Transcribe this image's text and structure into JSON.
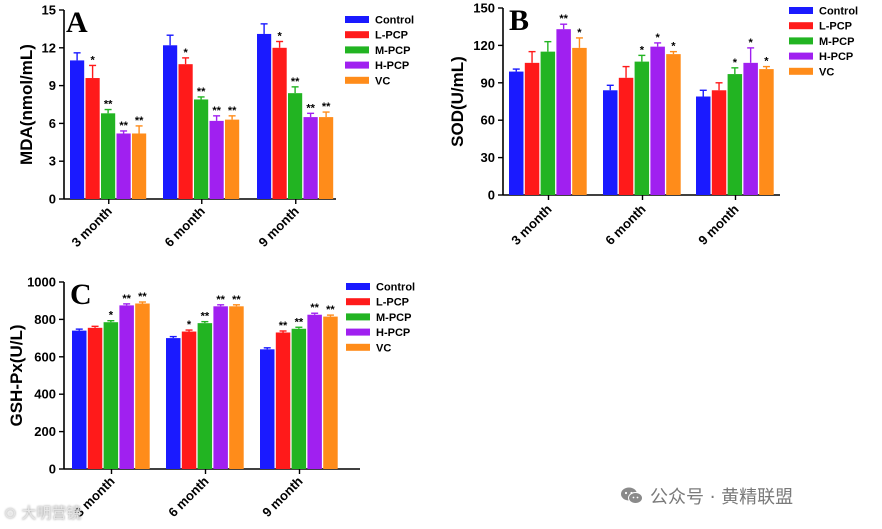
{
  "chart_data": [
    {
      "type": "bar",
      "panel": "A",
      "ylabel": "MDA(nmol/mL)",
      "ylim": [
        0,
        15
      ],
      "yticks": [
        0,
        3,
        6,
        9,
        12,
        15
      ],
      "categories": [
        "3 month",
        "6 month",
        "9 month"
      ],
      "legend": [
        "Control",
        "L-PCP",
        "M-PCP",
        "H-PCP",
        "VC"
      ],
      "colors": [
        "#1a1aff",
        "#ff1a1a",
        "#22b422",
        "#a020f0",
        "#ff8c1a"
      ],
      "series": [
        {
          "name": "Control",
          "values": [
            11.0,
            12.2,
            13.1
          ],
          "errors": [
            0.6,
            0.8,
            0.8
          ],
          "sig": [
            "",
            "",
            ""
          ]
        },
        {
          "name": "L-PCP",
          "values": [
            9.6,
            10.7,
            12.0
          ],
          "errors": [
            1.0,
            0.5,
            0.5
          ],
          "sig": [
            "*",
            "*",
            "*"
          ]
        },
        {
          "name": "M-PCP",
          "values": [
            6.8,
            7.9,
            8.4
          ],
          "errors": [
            0.3,
            0.2,
            0.5
          ],
          "sig": [
            "**",
            "**",
            "**"
          ]
        },
        {
          "name": "H-PCP",
          "values": [
            5.2,
            6.2,
            6.5
          ],
          "errors": [
            0.2,
            0.4,
            0.3
          ],
          "sig": [
            "**",
            "**",
            "**"
          ]
        },
        {
          "name": "VC",
          "values": [
            5.2,
            6.3,
            6.5
          ],
          "errors": [
            0.6,
            0.3,
            0.4
          ],
          "sig": [
            "**",
            "**",
            "**"
          ]
        }
      ]
    },
    {
      "type": "bar",
      "panel": "B",
      "ylabel": "SOD(U/mL)",
      "ylim": [
        0,
        150
      ],
      "yticks": [
        0,
        30,
        60,
        90,
        120,
        150
      ],
      "categories": [
        "3 month",
        "6 month",
        "9 month"
      ],
      "legend": [
        "Control",
        "L-PCP",
        "M-PCP",
        "H-PCP",
        "VC"
      ],
      "colors": [
        "#1a1aff",
        "#ff1a1a",
        "#22b422",
        "#a020f0",
        "#ff8c1a"
      ],
      "series": [
        {
          "name": "Control",
          "values": [
            99,
            84,
            79
          ],
          "errors": [
            2,
            4,
            5
          ],
          "sig": [
            "",
            "",
            ""
          ]
        },
        {
          "name": "L-PCP",
          "values": [
            106,
            94,
            84
          ],
          "errors": [
            9,
            9,
            6
          ],
          "sig": [
            "",
            "",
            ""
          ]
        },
        {
          "name": "M-PCP",
          "values": [
            115,
            107,
            97
          ],
          "errors": [
            8,
            5,
            5
          ],
          "sig": [
            "",
            "*",
            "*"
          ]
        },
        {
          "name": "H-PCP",
          "values": [
            133,
            119,
            106
          ],
          "errors": [
            4,
            3,
            12
          ],
          "sig": [
            "**",
            "*",
            "*"
          ]
        },
        {
          "name": "VC",
          "values": [
            118,
            113,
            101
          ],
          "errors": [
            8,
            2,
            2
          ],
          "sig": [
            "*",
            "*",
            "*"
          ]
        }
      ]
    },
    {
      "type": "bar",
      "panel": "C",
      "ylabel": "GSH-Px(U/L)",
      "ylim": [
        0,
        1000
      ],
      "yticks": [
        0,
        200,
        400,
        600,
        800,
        1000
      ],
      "categories": [
        "3 month",
        "6 month",
        "9 month"
      ],
      "legend": [
        "Control",
        "L-PCP",
        "M-PCP",
        "H-PCP",
        "VC"
      ],
      "colors": [
        "#1a1aff",
        "#ff1a1a",
        "#22b422",
        "#a020f0",
        "#ff8c1a"
      ],
      "series": [
        {
          "name": "Control",
          "values": [
            740,
            700,
            640
          ],
          "errors": [
            8,
            8,
            8
          ],
          "sig": [
            "",
            "",
            ""
          ]
        },
        {
          "name": "L-PCP",
          "values": [
            755,
            735,
            730
          ],
          "errors": [
            8,
            8,
            8
          ],
          "sig": [
            "",
            "*",
            "**"
          ]
        },
        {
          "name": "M-PCP",
          "values": [
            785,
            780,
            750
          ],
          "errors": [
            8,
            8,
            8
          ],
          "sig": [
            "*",
            "**",
            "**"
          ]
        },
        {
          "name": "H-PCP",
          "values": [
            875,
            870,
            825
          ],
          "errors": [
            8,
            8,
            8
          ],
          "sig": [
            "**",
            "**",
            "**"
          ]
        },
        {
          "name": "VC",
          "values": [
            885,
            870,
            815
          ],
          "errors": [
            8,
            8,
            8
          ],
          "sig": [
            "**",
            "**",
            "**"
          ]
        }
      ]
    }
  ],
  "watermark_left": "大明营镜",
  "watermark_right": "公众号 · 黄精联盟",
  "icons": {
    "watermark_logo": "camera-logo-icon",
    "wechat": "wechat-icon"
  }
}
